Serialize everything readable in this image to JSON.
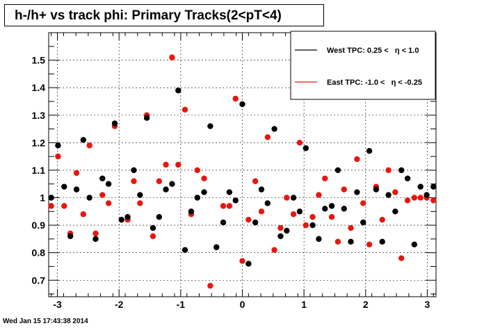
{
  "footer": {
    "timestamp": "Wed Jan 15 17:43:38 2014"
  },
  "chart_data": {
    "type": "scatter",
    "title": "h-/h+ vs track phi: Primary Tracks(2<pT<4)",
    "xlabel": "",
    "ylabel": "",
    "xlim": [
      -3.14159,
      3.14159
    ],
    "ylim": [
      0.64,
      1.6
    ],
    "xticks": [
      -3,
      -2,
      -1,
      0,
      1,
      2,
      3
    ],
    "xtick_labels": [
      "-3",
      "-2",
      "-1",
      "0",
      "1",
      "2",
      "3"
    ],
    "yticks": [
      0.7,
      0.8,
      0.9,
      1.0,
      1.1,
      1.2,
      1.3,
      1.4,
      1.5
    ],
    "ytick_labels": [
      "0.7",
      "0.8",
      "0.9",
      "1",
      "1.1",
      "1.2",
      "1.3",
      "1.4",
      "1.5"
    ],
    "grid": true,
    "legend_position": "top-right",
    "series": [
      {
        "name": "West TPC: 0.25 <   η < 1.0",
        "color": "#000000",
        "x": [
          -3.1,
          -2.99,
          -2.89,
          -2.79,
          -2.69,
          -2.58,
          -2.48,
          -2.38,
          -2.27,
          -2.17,
          -2.07,
          -1.96,
          -1.86,
          -1.76,
          -1.66,
          -1.55,
          -1.45,
          -1.35,
          -1.24,
          -1.14,
          -1.04,
          -0.93,
          -0.83,
          -0.73,
          -0.62,
          -0.52,
          -0.42,
          -0.31,
          -0.21,
          -0.11,
          0.0,
          0.1,
          0.21,
          0.31,
          0.41,
          0.52,
          0.62,
          0.72,
          0.83,
          0.93,
          1.03,
          1.14,
          1.24,
          1.34,
          1.45,
          1.55,
          1.65,
          1.76,
          1.86,
          1.96,
          2.06,
          2.17,
          2.27,
          2.37,
          2.48,
          2.58,
          2.68,
          2.79,
          2.89,
          2.99,
          3.1
        ],
        "y": [
          1.0,
          1.19,
          1.04,
          0.86,
          1.03,
          1.21,
          1.0,
          0.85,
          1.07,
          1.05,
          1.27,
          0.92,
          0.93,
          1.1,
          1.01,
          1.29,
          0.89,
          0.93,
          1.03,
          1.05,
          1.39,
          0.81,
          0.95,
          1.0,
          1.02,
          1.26,
          0.82,
          0.91,
          1.02,
          0.99,
          1.34,
          0.76,
          0.91,
          1.03,
          0.98,
          1.25,
          0.86,
          0.88,
          1.0,
          0.95,
          1.18,
          0.9,
          0.85,
          0.96,
          0.97,
          1.1,
          0.96,
          0.84,
          1.02,
          0.91,
          1.17,
          1.03,
          0.84,
          1.01,
          0.95,
          1.1,
          1.07,
          0.83,
          1.04,
          1.01,
          1.04
        ]
      },
      {
        "name": "East TPC: -1.0 <   η < -0.25",
        "color": "#e8160e",
        "x": [
          -3.1,
          -2.99,
          -2.89,
          -2.79,
          -2.69,
          -2.58,
          -2.48,
          -2.38,
          -2.27,
          -2.17,
          -2.07,
          -1.96,
          -1.86,
          -1.76,
          -1.66,
          -1.55,
          -1.45,
          -1.35,
          -1.24,
          -1.14,
          -1.04,
          -0.93,
          -0.83,
          -0.73,
          -0.62,
          -0.52,
          -0.42,
          -0.31,
          -0.21,
          -0.11,
          0.0,
          0.1,
          0.21,
          0.31,
          0.41,
          0.52,
          0.62,
          0.72,
          0.83,
          0.93,
          1.03,
          1.14,
          1.24,
          1.34,
          1.45,
          1.55,
          1.65,
          1.76,
          1.86,
          1.96,
          2.06,
          2.17,
          2.27,
          2.37,
          2.48,
          2.58,
          2.68,
          2.79,
          2.89,
          2.99,
          3.1
        ],
        "y": [
          0.97,
          1.15,
          0.97,
          0.87,
          1.09,
          0.94,
          1.19,
          0.87,
          1.01,
          0.98,
          1.26,
          0.92,
          0.92,
          1.06,
          0.98,
          1.3,
          0.86,
          1.06,
          1.12,
          1.51,
          1.12,
          1.32,
          0.94,
          1.1,
          1.07,
          0.68,
          0.82,
          0.97,
          0.97,
          1.36,
          0.77,
          0.92,
          1.06,
          0.95,
          1.22,
          0.81,
          0.89,
          1.0,
          0.94,
          1.2,
          0.9,
          0.93,
          1.01,
          1.07,
          0.93,
          0.84,
          1.03,
          0.89,
          1.14,
          0.98,
          0.83,
          1.04,
          0.92,
          1.1,
          1.02,
          0.78,
          0.99,
          1.0,
          1.0,
          1.0,
          0.99
        ]
      }
    ]
  }
}
